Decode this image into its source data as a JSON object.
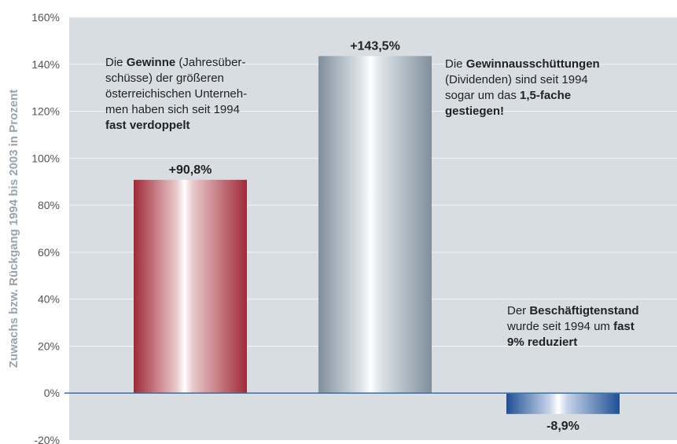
{
  "chart_data": {
    "type": "bar",
    "categories": [
      "",
      "",
      ""
    ],
    "values": [
      90.8,
      143.5,
      -8.9
    ],
    "value_labels": [
      "+90,8%",
      "+143,5%",
      "-8,9%"
    ],
    "bar_colors": [
      "#a5303e",
      "#8b9aa6",
      "#1f4f95"
    ],
    "title": "",
    "xlabel": "",
    "ylabel": "Zuwachs bzw. Rückgang 1994 bis 2003 in Prozent",
    "ylim": [
      -20,
      160
    ],
    "yticks": [
      -20,
      0,
      20,
      40,
      60,
      80,
      100,
      120,
      140,
      160
    ],
    "ytick_labels": [
      "-20%",
      "0%",
      "20%",
      "40%",
      "60%",
      "80%",
      "100%",
      "120%",
      "140%",
      "160%"
    ],
    "grid": true,
    "legend": "none",
    "annotations": [
      {
        "parts": [
          {
            "t": "Die ",
            "b": false
          },
          {
            "t": "Gewinne",
            "b": true
          },
          {
            "t": " (Jahresüber-",
            "b": false
          },
          {
            "br": true
          },
          {
            "t": "schüsse) der größeren",
            "b": false
          },
          {
            "br": true
          },
          {
            "t": "österreichischen Unterneh-",
            "b": false
          },
          {
            "br": true
          },
          {
            "t": "men haben sich seit 1994",
            "b": false
          },
          {
            "br": true
          },
          {
            "t": "fast verdoppelt",
            "b": true
          }
        ]
      },
      {
        "parts": [
          {
            "t": "Die ",
            "b": false
          },
          {
            "t": "Gewinnausschüttungen",
            "b": true
          },
          {
            "br": true
          },
          {
            "t": "(Dividenden) sind seit 1994",
            "b": false
          },
          {
            "br": true
          },
          {
            "t": "sogar um das ",
            "b": false
          },
          {
            "t": "1,5-fache",
            "b": true
          },
          {
            "br": true
          },
          {
            "t": "gestiegen!",
            "b": true
          }
        ]
      },
      {
        "parts": [
          {
            "t": "Der ",
            "b": false
          },
          {
            "t": "Beschäftigtenstand",
            "b": true
          },
          {
            "br": true
          },
          {
            "t": "wurde seit 1994 um ",
            "b": false
          },
          {
            "t": "fast",
            "b": true
          },
          {
            "br": true
          },
          {
            "t": "9% reduziert",
            "b": true
          }
        ]
      }
    ]
  },
  "colors": {
    "plot_background": "#d8dde2",
    "gridline": "#f2f4f6",
    "zero_line": "#3a6fa8"
  }
}
